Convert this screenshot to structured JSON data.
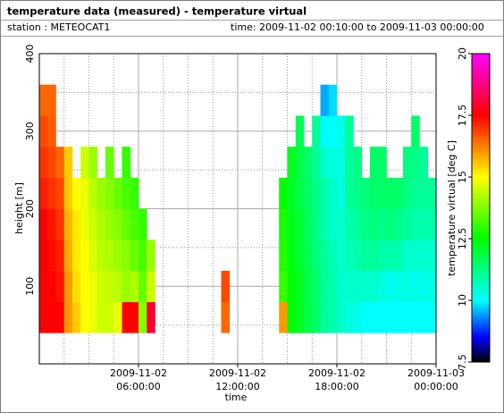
{
  "chart_data": {
    "type": "heatmap",
    "title": "temperature data (measured) - temperature virtual",
    "station": "station : METEOCAT1",
    "period": "time: 2009-11-02 00:10:00 to 2009-11-03 00:00:00",
    "xlabel": "time",
    "ylabel": "height [m]",
    "colorbar_label": "temperature virtual [deg C]",
    "xlim": [
      0,
      24
    ],
    "ylim": [
      0,
      400
    ],
    "xticks": [
      {
        "value": 6,
        "label": "2009-11-02 06:00:00"
      },
      {
        "value": 12,
        "label": "2009-11-02 12:00:00"
      },
      {
        "value": 18,
        "label": "2009-11-02 18:00:00"
      },
      {
        "value": 24,
        "label": "2009-11-03 00:00:00"
      }
    ],
    "xminorticks": [
      1.5,
      3,
      4.5,
      7.5,
      9,
      10.5,
      13.5,
      15,
      16.5,
      19.5,
      21,
      22.5
    ],
    "yticks": [
      100,
      200,
      300,
      400
    ],
    "yminorticks": [
      50,
      150,
      250,
      350
    ],
    "clim": [
      7.5,
      20
    ],
    "cticks": [
      7.5,
      10,
      12.5,
      15,
      17.5,
      20
    ],
    "colorscale": [
      [
        7.5,
        "#000000"
      ],
      [
        8.5,
        "#0000ff"
      ],
      [
        10,
        "#00ffff"
      ],
      [
        12.5,
        "#00ff00"
      ],
      [
        15,
        "#ffff00"
      ],
      [
        17.5,
        "#ff0000"
      ],
      [
        20,
        "#ff00ff"
      ]
    ],
    "xbins": [
      0,
      0.5,
      1,
      1.5,
      2,
      2.5,
      3,
      3.5,
      4,
      4.5,
      5,
      5.5,
      6,
      6.5,
      7,
      7.5,
      8,
      8.5,
      9,
      9.5,
      10,
      10.5,
      11,
      11.5,
      12,
      12.5,
      13,
      13.5,
      14,
      14.5,
      15,
      15.5,
      16,
      16.5,
      17,
      17.5,
      18,
      18.5,
      19,
      19.5,
      20,
      20.5,
      21,
      21.5,
      22,
      22.5,
      23,
      23.5,
      24
    ],
    "ybins": [
      40,
      80,
      120,
      160,
      200,
      240,
      280,
      320,
      360
    ],
    "z": [
      [
        17.5,
        17.5,
        17.5,
        17.5,
        17.2,
        17,
        16.8,
        16.5
      ],
      [
        17.5,
        17.5,
        17.4,
        17.3,
        17,
        16.8,
        16.6,
        16.5
      ],
      [
        17.5,
        17.3,
        17.2,
        17,
        16.8,
        16.5,
        null,
        null
      ],
      [
        16,
        16,
        15.8,
        15.7,
        15.5,
        15.5,
        null,
        null
      ],
      [
        15.5,
        15.3,
        15.2,
        15.2,
        15,
        null,
        null,
        null
      ],
      [
        15,
        15,
        15,
        14.8,
        14.8,
        14.5,
        null,
        null
      ],
      [
        14.8,
        14.8,
        14.6,
        14.5,
        14.3,
        14,
        null,
        null
      ],
      [
        14.5,
        14.5,
        14.3,
        14.2,
        14,
        null,
        null,
        null
      ],
      [
        14.5,
        14.4,
        14.2,
        14,
        13.8,
        13.5,
        null,
        null
      ],
      [
        14.8,
        14.3,
        14,
        13.8,
        13.5,
        null,
        null,
        null
      ],
      [
        17.5,
        14,
        13.8,
        13.5,
        13.2,
        13,
        null,
        null
      ],
      [
        17.5,
        14.2,
        13.5,
        13.2,
        13,
        null,
        null,
        null
      ],
      [
        13.8,
        13.5,
        13.2,
        13,
        null,
        null,
        null,
        null
      ],
      [
        18,
        14.5,
        14,
        null,
        null,
        null,
        null,
        null
      ],
      [
        null,
        null,
        null,
        null,
        null,
        null,
        null,
        null
      ],
      [
        null,
        null,
        null,
        null,
        null,
        null,
        null,
        null
      ],
      [
        null,
        null,
        null,
        null,
        null,
        null,
        null,
        null
      ],
      [
        null,
        null,
        null,
        null,
        null,
        null,
        null,
        null
      ],
      [
        null,
        null,
        null,
        null,
        null,
        null,
        null,
        null
      ],
      [
        null,
        null,
        null,
        null,
        null,
        null,
        null,
        null
      ],
      [
        null,
        null,
        null,
        null,
        null,
        null,
        null,
        null
      ],
      [
        null,
        null,
        null,
        null,
        null,
        null,
        null,
        null
      ],
      [
        16.5,
        16.8,
        null,
        null,
        null,
        null,
        null,
        null
      ],
      [
        null,
        null,
        null,
        null,
        null,
        null,
        null,
        null
      ],
      [
        null,
        null,
        null,
        null,
        null,
        null,
        null,
        null
      ],
      [
        null,
        null,
        null,
        null,
        null,
        null,
        null,
        null
      ],
      [
        null,
        null,
        null,
        null,
        null,
        null,
        null,
        null
      ],
      [
        null,
        null,
        null,
        null,
        null,
        null,
        null,
        null
      ],
      [
        null,
        null,
        null,
        null,
        null,
        null,
        null,
        null
      ],
      [
        16,
        13,
        12.8,
        12.7,
        12.5,
        null,
        null,
        null
      ],
      [
        12.5,
        12.5,
        12.4,
        12.3,
        12.2,
        12.2,
        null,
        null
      ],
      [
        12.2,
        12.2,
        12,
        12,
        11.8,
        11.8,
        11.7,
        null
      ],
      [
        11.8,
        11.8,
        11.7,
        11.6,
        11.5,
        11.5,
        null,
        null
      ],
      [
        11.5,
        11.5,
        11.3,
        11.2,
        11.2,
        11,
        11,
        null
      ],
      [
        11,
        11,
        11,
        10.8,
        10.8,
        10.5,
        10,
        9.5
      ],
      [
        10.8,
        10.8,
        10.7,
        10.5,
        10.5,
        10.3,
        10,
        9.8
      ],
      [
        10.5,
        10.5,
        10.5,
        10.5,
        10.3,
        10.3,
        10.2,
        null
      ],
      [
        10.3,
        10.5,
        10.7,
        10.8,
        11,
        11,
        11,
        null
      ],
      [
        10.2,
        10.5,
        10.8,
        11,
        11.2,
        11.2,
        null,
        null
      ],
      [
        10,
        10.5,
        11,
        11.2,
        11.3,
        null,
        null,
        null
      ],
      [
        10,
        10.5,
        11,
        11.3,
        11.5,
        11.5,
        null,
        null
      ],
      [
        10,
        10.3,
        10.8,
        11.2,
        11.5,
        11.5,
        null,
        null
      ],
      [
        10,
        10.2,
        10.8,
        11.3,
        11.5,
        null,
        null,
        null
      ],
      [
        10,
        10.2,
        10.8,
        11.2,
        11.5,
        null,
        null,
        null
      ],
      [
        10,
        10.3,
        10.5,
        11,
        11.2,
        11.3,
        null,
        null
      ],
      [
        10,
        10.2,
        10.5,
        10.8,
        11,
        11.2,
        11.5,
        null
      ],
      [
        10,
        10.2,
        10.5,
        10.8,
        11,
        11,
        null,
        null
      ],
      [
        10,
        10.3,
        10.5,
        10.8,
        11,
        null,
        null,
        null
      ]
    ]
  }
}
